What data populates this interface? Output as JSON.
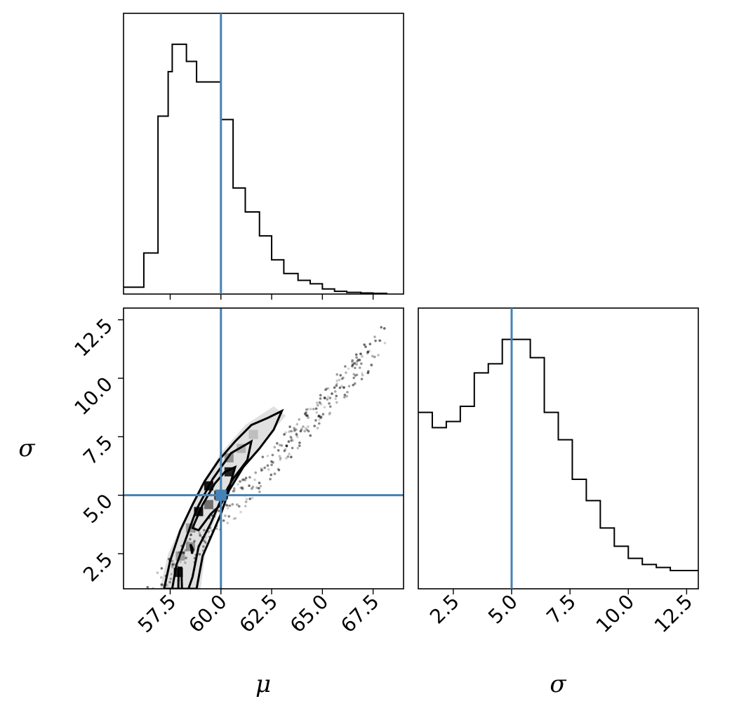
{
  "chart_data": {
    "type": "corner",
    "parameters": [
      "μ",
      "σ"
    ],
    "truths": {
      "mu": 60.0,
      "sigma": 5.0
    },
    "truth_color": "#4682b4",
    "mu_hist": {
      "type": "histogram",
      "edges": [
        55.0,
        56.25,
        57.5,
        58.75,
        60.0,
        61.25,
        62.5,
        63.75,
        65.0,
        66.25,
        67.5,
        68.75
      ],
      "bins": [
        {
          "lo": 55.0,
          "hi": 56.2,
          "count": 2
        },
        {
          "lo": 56.2,
          "hi": 56.9,
          "count": 12
        },
        {
          "lo": 56.9,
          "hi": 57.4,
          "count": 52
        },
        {
          "lo": 57.4,
          "hi": 57.6,
          "count": 65
        },
        {
          "lo": 57.6,
          "hi": 58.3,
          "count": 73
        },
        {
          "lo": 58.3,
          "hi": 58.8,
          "count": 68
        },
        {
          "lo": 58.8,
          "hi": 60.0,
          "count": 62
        },
        {
          "lo": 60.0,
          "hi": 60.6,
          "count": 51
        },
        {
          "lo": 60.6,
          "hi": 61.2,
          "count": 31
        },
        {
          "lo": 61.2,
          "hi": 61.9,
          "count": 24
        },
        {
          "lo": 61.9,
          "hi": 62.5,
          "count": 17
        },
        {
          "lo": 62.5,
          "hi": 63.1,
          "count": 10
        },
        {
          "lo": 63.1,
          "hi": 63.8,
          "count": 6
        },
        {
          "lo": 63.8,
          "hi": 64.4,
          "count": 4
        },
        {
          "lo": 64.4,
          "hi": 65.0,
          "count": 3
        },
        {
          "lo": 65.0,
          "hi": 65.6,
          "count": 1.5
        },
        {
          "lo": 65.6,
          "hi": 66.2,
          "count": 0.8
        },
        {
          "lo": 66.2,
          "hi": 66.9,
          "count": 0.5
        },
        {
          "lo": 66.9,
          "hi": 67.5,
          "count": 0.3
        },
        {
          "lo": 67.5,
          "hi": 68.2,
          "count": 0.2
        }
      ],
      "ymax": 80
    },
    "sigma_hist": {
      "type": "histogram",
      "bins": [
        {
          "lo": 1.0,
          "hi": 1.6,
          "count": 58
        },
        {
          "lo": 1.6,
          "hi": 2.2,
          "count": 53
        },
        {
          "lo": 2.2,
          "hi": 2.8,
          "count": 55
        },
        {
          "lo": 2.8,
          "hi": 3.4,
          "count": 60
        },
        {
          "lo": 3.4,
          "hi": 4.0,
          "count": 71
        },
        {
          "lo": 4.0,
          "hi": 4.6,
          "count": 74
        },
        {
          "lo": 4.6,
          "hi": 5.2,
          "count": 82
        },
        {
          "lo": 5.2,
          "hi": 5.8,
          "count": 82
        },
        {
          "lo": 5.8,
          "hi": 6.4,
          "count": 76
        },
        {
          "lo": 6.4,
          "hi": 7.0,
          "count": 58
        },
        {
          "lo": 7.0,
          "hi": 7.6,
          "count": 49
        },
        {
          "lo": 7.6,
          "hi": 8.2,
          "count": 36
        },
        {
          "lo": 8.2,
          "hi": 8.8,
          "count": 29
        },
        {
          "lo": 8.8,
          "hi": 9.4,
          "count": 20
        },
        {
          "lo": 9.4,
          "hi": 10.0,
          "count": 14
        },
        {
          "lo": 10.0,
          "hi": 10.6,
          "count": 10
        },
        {
          "lo": 10.6,
          "hi": 11.2,
          "count": 8
        },
        {
          "lo": 11.2,
          "hi": 11.8,
          "count": 7
        },
        {
          "lo": 11.8,
          "hi": 12.4,
          "count": 6
        },
        {
          "lo": 12.4,
          "hi": 13.0,
          "count": 6
        }
      ],
      "ymax": 90
    },
    "joint": {
      "xlim": [
        56.5,
        69.0
      ],
      "ylim": [
        1.0,
        13.0
      ],
      "cells": [
        {
          "mu": 57.9,
          "sigma": 1.7,
          "shade": 0.85
        },
        {
          "mu": 58.5,
          "sigma": 2.8,
          "shade": 0.35
        },
        {
          "mu": 58.5,
          "sigma": 3.6,
          "shade": 0.3
        },
        {
          "mu": 58.9,
          "sigma": 4.3,
          "shade": 0.9
        },
        {
          "mu": 59.4,
          "sigma": 5.4,
          "shade": 0.9
        },
        {
          "mu": 59.9,
          "sigma": 5.0,
          "shade": 0.9
        },
        {
          "mu": 60.4,
          "sigma": 6.0,
          "shade": 0.85
        },
        {
          "mu": 59.4,
          "sigma": 4.6,
          "shade": 0.5
        },
        {
          "mu": 60.4,
          "sigma": 6.6,
          "shade": 0.35
        },
        {
          "mu": 61.0,
          "sigma": 7.0,
          "shade": 0.2
        },
        {
          "mu": 61.6,
          "sigma": 7.6,
          "shade": 0.15
        },
        {
          "mu": 58.0,
          "sigma": 2.4,
          "shade": 0.3
        }
      ],
      "contours": [
        {
          "level": "outer",
          "points": [
            [
              57.2,
              1.0
            ],
            [
              57.5,
              2.2
            ],
            [
              58.0,
              3.5
            ],
            [
              58.6,
              4.6
            ],
            [
              59.2,
              5.6
            ],
            [
              59.9,
              6.5
            ],
            [
              60.7,
              7.3
            ],
            [
              61.5,
              8.0
            ],
            [
              62.3,
              8.3
            ],
            [
              63.0,
              8.6
            ],
            [
              62.6,
              7.8
            ],
            [
              61.9,
              7.0
            ],
            [
              61.1,
              6.2
            ],
            [
              60.4,
              5.2
            ],
            [
              60.0,
              4.2
            ],
            [
              59.6,
              3.4
            ],
            [
              59.1,
              2.4
            ],
            [
              58.8,
              1.0
            ]
          ]
        },
        {
          "level": "middle",
          "points": [
            [
              57.6,
              1.0
            ],
            [
              57.8,
              2.0
            ],
            [
              58.3,
              3.2
            ],
            [
              58.8,
              4.4
            ],
            [
              59.6,
              5.7
            ],
            [
              60.5,
              6.8
            ],
            [
              61.5,
              7.3
            ],
            [
              61.3,
              6.5
            ],
            [
              60.6,
              5.7
            ],
            [
              60.0,
              4.8
            ],
            [
              59.5,
              3.8
            ],
            [
              58.9,
              2.8
            ],
            [
              58.6,
              1.5
            ],
            [
              58.4,
              1.0
            ]
          ]
        },
        {
          "level": "inner-upper",
          "points": [
            [
              58.6,
              3.6
            ],
            [
              59.1,
              4.6
            ],
            [
              59.7,
              5.5
            ],
            [
              60.2,
              6.0
            ],
            [
              60.7,
              6.2
            ],
            [
              60.4,
              5.3
            ],
            [
              60.0,
              4.6
            ],
            [
              59.5,
              4.2
            ],
            [
              58.9,
              3.5
            ],
            [
              58.6,
              3.6
            ]
          ]
        },
        {
          "level": "inner-mid",
          "points": [
            [
              58.5,
              2.9
            ],
            [
              58.58,
              2.5
            ],
            [
              58.62,
              2.7
            ],
            [
              58.5,
              2.9
            ]
          ]
        },
        {
          "level": "inner-low",
          "points": [
            [
              57.9,
              1.0
            ],
            [
              57.92,
              1.9
            ],
            [
              58.05,
              1.9
            ],
            [
              58.08,
              1.0
            ]
          ]
        }
      ]
    },
    "xticks_mu": [
      "57.5",
      "60.0",
      "62.5",
      "65.0",
      "67.5"
    ],
    "yticks_sigma": [
      "2.5",
      "5.0",
      "7.5",
      "10.0",
      "12.5"
    ],
    "xticks_sigma": [
      "2.5",
      "5.0",
      "7.5",
      "10.0",
      "12.5"
    ],
    "xlabel_mu": "μ",
    "xlabel_sigma": "σ",
    "ylabel_sigma": "σ"
  }
}
